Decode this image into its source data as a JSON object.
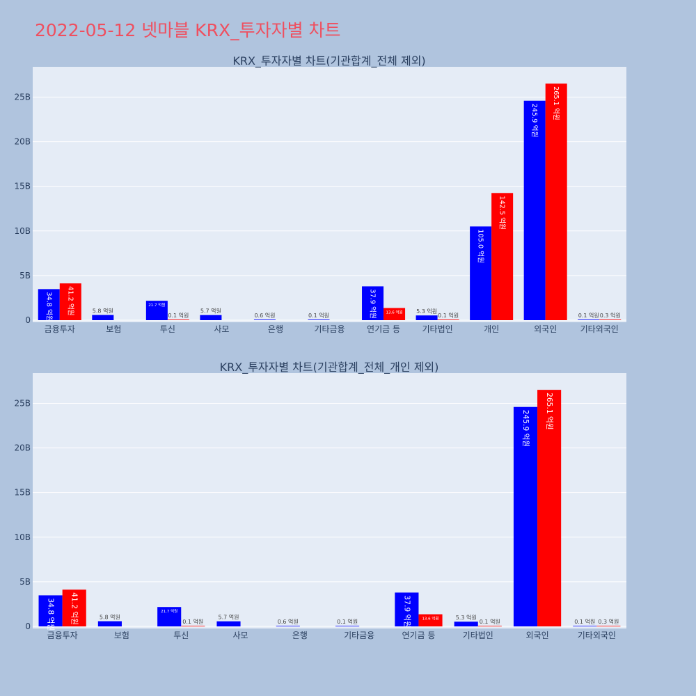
{
  "page": {
    "title": "2022-05-12 넷마블 KRX_투자자별 차트"
  },
  "colors": {
    "background": "#b0c4de",
    "plot_bg": "#e5ecf6",
    "title": "#ef4f5f",
    "buy": "#0000ff",
    "sell": "#ff0000",
    "grid": "#ffffff"
  },
  "chart_data": [
    {
      "type": "bar",
      "title": "KRX_투자자별 차트(기관합계_전체 제외)",
      "categories": [
        "금융투자",
        "보험",
        "투신",
        "사모",
        "은행",
        "기타금융",
        "연기금 등",
        "기타법인",
        "개인",
        "외국인",
        "기타외국인"
      ],
      "ylim": [
        0,
        28000000000
      ],
      "yticks": [
        0,
        5000000000,
        10000000000,
        15000000000,
        20000000000,
        25000000000
      ],
      "ytick_labels": [
        "0",
        "5B",
        "10B",
        "15B",
        "20B",
        "25B"
      ],
      "grid": true,
      "series": [
        {
          "color": "#0000ff",
          "values": [
            3480000000,
            580000000,
            2170000000,
            570000000,
            60000000,
            10000000,
            3790000000,
            530000000,
            10500000000,
            24590000000,
            10000000
          ],
          "labels": [
            "34.8 억원",
            "5.8 억원",
            "21.7 억원",
            "5.7 억원",
            "0.6 억원",
            "0.1 억원",
            "37.9 억원",
            "5.3 억원",
            "105.0 억원",
            "245.9 억원",
            "0.1 억원"
          ]
        },
        {
          "color": "#ff0000",
          "values": [
            4120000000,
            0,
            10000000,
            0,
            0,
            0,
            1360000000,
            10000000,
            14250000000,
            26510000000,
            30000000
          ],
          "labels": [
            "41.2 억원",
            "",
            "0.1 억원",
            "",
            "",
            "",
            "13.6 억원",
            "0.1 억원",
            "142.5 억원",
            "265.1 억원",
            "0.3 억원"
          ]
        }
      ]
    },
    {
      "type": "bar",
      "title": "KRX_투자자별 차트(기관합계_전체_개인 제외)",
      "categories": [
        "금융투자",
        "보험",
        "투신",
        "사모",
        "은행",
        "기타금융",
        "연기금 등",
        "기타법인",
        "외국인",
        "기타외국인"
      ],
      "ylim": [
        0,
        28000000000
      ],
      "yticks": [
        0,
        5000000000,
        10000000000,
        15000000000,
        20000000000,
        25000000000
      ],
      "ytick_labels": [
        "0",
        "5B",
        "10B",
        "15B",
        "20B",
        "25B"
      ],
      "grid": true,
      "series": [
        {
          "color": "#0000ff",
          "values": [
            3480000000,
            580000000,
            2170000000,
            570000000,
            60000000,
            10000000,
            3790000000,
            530000000,
            24590000000,
            10000000
          ],
          "labels": [
            "34.8 억원",
            "5.8 억원",
            "21.7 억원",
            "5.7 억원",
            "0.6 억원",
            "0.1 억원",
            "37.9 억원",
            "5.3 억원",
            "245.9 억원",
            "0.1 억원"
          ]
        },
        {
          "color": "#ff0000",
          "values": [
            4120000000,
            0,
            10000000,
            0,
            0,
            0,
            1360000000,
            10000000,
            26510000000,
            30000000
          ],
          "labels": [
            "41.2 억원",
            "",
            "0.1 억원",
            "",
            "",
            "",
            "13.6 억원",
            "0.1 억원",
            "265.1 억원",
            "0.3 억원"
          ]
        }
      ]
    }
  ]
}
